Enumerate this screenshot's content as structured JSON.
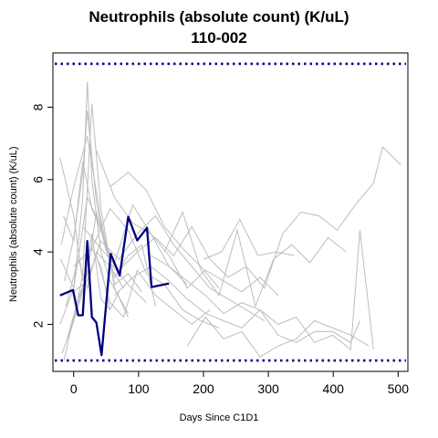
{
  "chart_data": {
    "type": "line",
    "title": "Neutrophils (absolute count) (K/uL)",
    "subtitle": "110-002",
    "xlabel": "Days Since C1D1",
    "ylabel": "Neutrophils (absolute count) (K/uL)",
    "xlim": [
      -32,
      515
    ],
    "ylim": [
      0.7,
      9.5
    ],
    "x_ticks": [
      0,
      100,
      200,
      300,
      400,
      500
    ],
    "y_ticks": [
      2,
      4,
      6,
      8
    ],
    "reference_lines": [
      9.2,
      1.0
    ],
    "colors": {
      "highlight": "#00007f",
      "background": "#bdbdbd",
      "reference": "#00008b"
    },
    "highlight_series": {
      "x": [
        -21,
        -1,
        7,
        14,
        21,
        28,
        35,
        43,
        57,
        71,
        84,
        98,
        113,
        120,
        147
      ],
      "y": [
        2.8,
        2.95,
        2.25,
        2.25,
        4.3,
        2.2,
        2.05,
        1.15,
        3.95,
        3.35,
        4.97,
        4.32,
        4.67,
        3.03,
        3.13
      ]
    },
    "background_series": [
      {
        "x": [
          -21,
          0,
          14,
          28,
          42,
          56
        ],
        "y": [
          6.6,
          5.0,
          3.2,
          4.1,
          3.6,
          2.4
        ]
      },
      {
        "x": [
          -21,
          0,
          14,
          21,
          28,
          42,
          56,
          84
        ],
        "y": [
          2.0,
          3.0,
          5.5,
          8.7,
          6.0,
          4.0,
          3.2,
          2.3
        ]
      },
      {
        "x": [
          -14,
          0,
          14,
          21,
          35,
          49,
          63
        ],
        "y": [
          3.2,
          4.4,
          6.2,
          7.9,
          5.4,
          4.1,
          3.6
        ]
      },
      {
        "x": [
          -18,
          0,
          14,
          28,
          42,
          63,
          84
        ],
        "y": [
          1.2,
          2.1,
          3.4,
          8.1,
          5.2,
          3.0,
          2.2
        ]
      },
      {
        "x": [
          -20,
          0,
          21,
          42,
          63,
          84,
          105,
          126
        ],
        "y": [
          3.8,
          3.0,
          5.5,
          4.7,
          3.3,
          3.9,
          4.2,
          2.5
        ]
      },
      {
        "x": [
          -15,
          0,
          14,
          28,
          42,
          56,
          70
        ],
        "y": [
          1.0,
          2.2,
          3.0,
          4.5,
          2.7,
          2.4,
          2.9
        ]
      },
      {
        "x": [
          -19,
          0,
          21,
          42,
          63,
          84,
          105
        ],
        "y": [
          4.2,
          5.8,
          7.2,
          4.9,
          3.1,
          3.4,
          2.9
        ]
      },
      {
        "x": [
          -12,
          7,
          21,
          35,
          56,
          77
        ],
        "y": [
          2.5,
          3.8,
          3.0,
          4.0,
          3.6,
          3.0
        ]
      },
      {
        "x": [
          -16,
          0,
          14,
          28,
          42,
          56,
          84,
          112
        ],
        "y": [
          5.0,
          4.3,
          6.5,
          5.2,
          4.6,
          3.7,
          3.1,
          2.6
        ]
      },
      {
        "x": [
          -10,
          7,
          21,
          35,
          49,
          63,
          91,
          119,
          147,
          175,
          203,
          231,
          259,
          287,
          315
        ],
        "y": [
          1.6,
          2.7,
          3.4,
          5.1,
          4.2,
          3.7,
          5.3,
          4.5,
          3.9,
          3.0,
          3.5,
          3.2,
          2.9,
          3.3,
          2.8
        ]
      },
      {
        "x": [
          0,
          28,
          56,
          84,
          112,
          140,
          168,
          196,
          224
        ],
        "y": [
          3.6,
          4.1,
          5.2,
          4.6,
          3.4,
          3.1,
          2.4,
          2.1,
          1.9
        ]
      },
      {
        "x": [
          0,
          21,
          42,
          70,
          98,
          126,
          154,
          182,
          210,
          238,
          266,
          294
        ],
        "y": [
          2.9,
          3.2,
          4.3,
          3.8,
          4.5,
          5.0,
          4.2,
          3.6,
          3.0,
          2.7,
          2.4,
          2.1
        ]
      },
      {
        "x": [
          14,
          42,
          70,
          98,
          126,
          154,
          182,
          210,
          238,
          266,
          294,
          322,
          350,
          378,
          406,
          434,
          462,
          476,
          504
        ],
        "y": [
          4.7,
          4.1,
          3.5,
          4.0,
          4.4,
          3.9,
          4.7,
          3.8,
          3.3,
          3.6,
          3.0,
          4.5,
          5.1,
          5.0,
          4.6,
          5.3,
          5.9,
          6.9,
          6.4
        ]
      },
      {
        "x": [
          63,
          91,
          119,
          147,
          175,
          203,
          231,
          259,
          287,
          315,
          343,
          371,
          399,
          427,
          441,
          462
        ],
        "y": [
          2.8,
          3.3,
          3.6,
          3.2,
          2.7,
          2.3,
          2.1,
          1.9,
          2.4,
          2.0,
          2.2,
          1.5,
          1.7,
          1.3,
          4.6,
          1.3
        ]
      },
      {
        "x": [
          119,
          147,
          175,
          203,
          231,
          259,
          287,
          315,
          343,
          371,
          399,
          427,
          441
        ],
        "y": [
          3.9,
          3.6,
          3.2,
          2.8,
          2.3,
          2.6,
          2.4,
          1.7,
          1.5,
          1.8,
          1.8,
          1.5,
          2.1
        ]
      },
      {
        "x": [
          140,
          168,
          196,
          224,
          252,
          280,
          308,
          336,
          364,
          392,
          420
        ],
        "y": [
          4.0,
          5.1,
          3.5,
          2.8,
          4.6,
          2.5,
          3.8,
          4.2,
          3.7,
          4.4,
          4.0
        ]
      },
      {
        "x": [
          175,
          203,
          231,
          259,
          287,
          315,
          343,
          371,
          399,
          427,
          455
        ],
        "y": [
          1.4,
          2.2,
          1.6,
          1.8,
          1.1,
          1.4,
          1.6,
          2.1,
          1.9,
          1.7,
          1.4
        ]
      },
      {
        "x": [
          200,
          228,
          256,
          284,
          312,
          340
        ],
        "y": [
          3.8,
          4.0,
          4.9,
          3.9,
          4.0,
          3.9
        ]
      },
      {
        "x": [
          56,
          84,
          112,
          140,
          168,
          196,
          224
        ],
        "y": [
          5.8,
          6.2,
          5.7,
          4.7,
          4.1,
          3.6,
          3.0
        ]
      },
      {
        "x": [
          35,
          63,
          91,
          119,
          147,
          175
        ],
        "y": [
          6.8,
          5.5,
          4.8,
          4.5,
          3.6,
          3.1
        ]
      },
      {
        "x": [
          -5,
          14,
          35,
          56,
          77,
          98,
          126,
          154,
          182,
          210
        ],
        "y": [
          1.8,
          2.9,
          3.9,
          2.6,
          2.2,
          3.5,
          2.8,
          2.4,
          2.0,
          2.4
        ]
      }
    ]
  }
}
